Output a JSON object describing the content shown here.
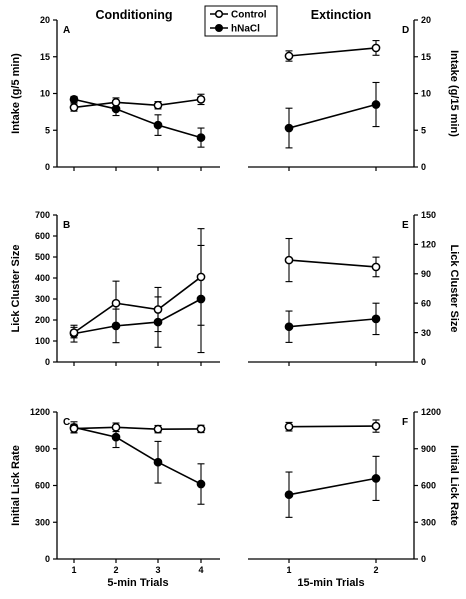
{
  "column_titles": {
    "left": "Conditioning",
    "right": "Extinction"
  },
  "legend": [
    {
      "name": "Control",
      "marker": "open-circle"
    },
    {
      "name": "hNaCl",
      "marker": "filled-circle"
    }
  ],
  "x_axis": {
    "left": {
      "label": "5-min Trials",
      "ticks": [
        "1",
        "2",
        "3",
        "4"
      ]
    },
    "right": {
      "label": "15-min Trials",
      "ticks": [
        "1",
        "2"
      ]
    }
  },
  "chart_data": [
    {
      "type": "line",
      "panel": "A",
      "side": "left",
      "ylabel": "Intake (g/5 min)",
      "ylim": [
        0,
        20
      ],
      "yticks": [
        0,
        5,
        10,
        15,
        20
      ],
      "x": [
        1,
        2,
        3,
        4
      ],
      "series": [
        {
          "name": "Control",
          "values": [
            8.1,
            8.8,
            8.4,
            9.2
          ],
          "err": [
            0.5,
            0.6,
            0.5,
            0.7
          ]
        },
        {
          "name": "hNaCl",
          "values": [
            9.2,
            7.9,
            5.7,
            4.0
          ],
          "err": [
            0.4,
            0.9,
            1.4,
            1.3
          ]
        }
      ]
    },
    {
      "type": "line",
      "panel": "D",
      "side": "right",
      "ylabel": "Intake (g/15 min)",
      "ylim": [
        0,
        20
      ],
      "yticks": [
        0,
        5,
        10,
        15,
        20
      ],
      "x": [
        1,
        2
      ],
      "series": [
        {
          "name": "Control",
          "values": [
            15.1,
            16.2
          ],
          "err": [
            0.7,
            1.0
          ]
        },
        {
          "name": "hNaCl",
          "values": [
            5.3,
            8.5
          ],
          "err": [
            2.7,
            3.0
          ]
        }
      ]
    },
    {
      "type": "line",
      "panel": "B",
      "side": "left",
      "ylabel": "Lick Cluster Size",
      "ylim": [
        0,
        700
      ],
      "yticks": [
        0,
        100,
        200,
        300,
        400,
        500,
        600,
        700
      ],
      "x": [
        1,
        2,
        3,
        4
      ],
      "series": [
        {
          "name": "Control",
          "values": [
            140,
            280,
            250,
            405
          ],
          "err": [
            25,
            105,
            105,
            230
          ]
        },
        {
          "name": "hNaCl",
          "values": [
            135,
            172,
            190,
            300
          ],
          "err": [
            40,
            80,
            120,
            255
          ]
        }
      ]
    },
    {
      "type": "line",
      "panel": "E",
      "side": "right",
      "ylabel": "Lick Cluster Size",
      "ylim": [
        0,
        150
      ],
      "yticks": [
        0,
        30,
        60,
        90,
        120,
        150
      ],
      "x": [
        1,
        2
      ],
      "series": [
        {
          "name": "Control",
          "values": [
            104,
            97
          ],
          "err": [
            22,
            10
          ]
        },
        {
          "name": "hNaCl",
          "values": [
            36,
            44
          ],
          "err": [
            16,
            16
          ]
        }
      ]
    },
    {
      "type": "line",
      "panel": "C",
      "side": "left",
      "ylabel": "Initial Lick Rate",
      "ylim": [
        0,
        1200
      ],
      "yticks": [
        0,
        300,
        600,
        900,
        1200
      ],
      "x": [
        1,
        2,
        3,
        4
      ],
      "series": [
        {
          "name": "Control",
          "values": [
            1065,
            1075,
            1060,
            1062
          ],
          "err": [
            35,
            35,
            30,
            30
          ]
        },
        {
          "name": "hNaCl",
          "values": [
            1075,
            995,
            790,
            612
          ],
          "err": [
            45,
            85,
            170,
            165
          ]
        }
      ]
    },
    {
      "type": "line",
      "panel": "F",
      "side": "right",
      "ylabel": "Initial Lick Rate",
      "ylim": [
        0,
        1200
      ],
      "yticks": [
        0,
        300,
        600,
        900,
        1200
      ],
      "x": [
        1,
        2
      ],
      "series": [
        {
          "name": "Control",
          "values": [
            1080,
            1085
          ],
          "err": [
            35,
            50
          ]
        },
        {
          "name": "hNaCl",
          "values": [
            525,
            658
          ],
          "err": [
            185,
            180
          ]
        }
      ]
    }
  ]
}
